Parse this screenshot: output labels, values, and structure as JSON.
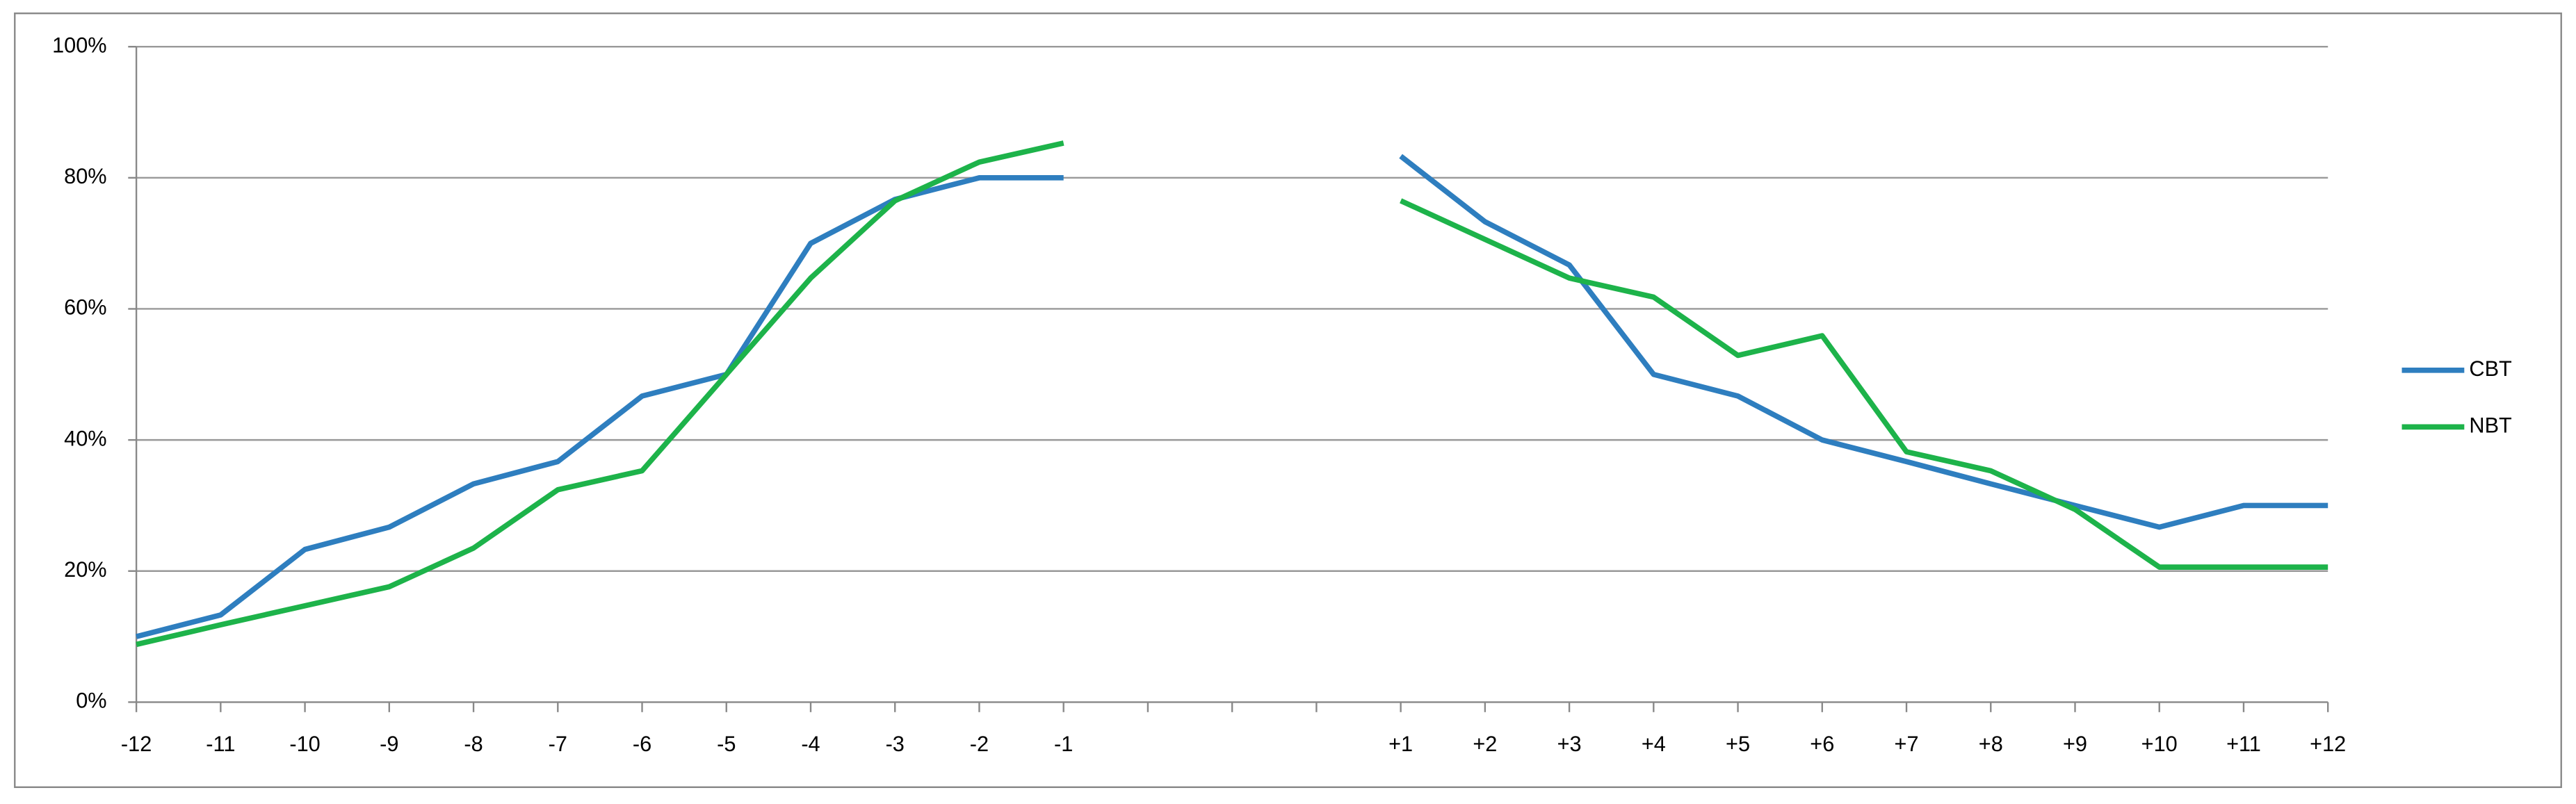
{
  "chart_data": {
    "type": "line",
    "categories": [
      "-12",
      "-11",
      "-10",
      "-9",
      "-8",
      "-7",
      "-6",
      "-5",
      "-4",
      "-3",
      "-2",
      "-1",
      null,
      null,
      null,
      "+1",
      "+2",
      "+3",
      "+4",
      "+5",
      "+6",
      "+7",
      "+8",
      "+9",
      "+10",
      "+11",
      "+12"
    ],
    "series": [
      {
        "name": "CBT",
        "color": "#2e7ebf",
        "values": [
          10,
          13.3,
          23.3,
          26.7,
          33.3,
          36.7,
          46.7,
          50,
          70,
          76.7,
          80,
          80,
          null,
          null,
          null,
          83.3,
          73.3,
          66.7,
          50,
          46.7,
          40,
          36.7,
          33.3,
          30,
          26.7,
          30,
          30
        ]
      },
      {
        "name": "NBT",
        "color": "#1db34a",
        "values": [
          8.8,
          11.8,
          14.7,
          17.6,
          23.5,
          32.4,
          35.3,
          50,
          64.7,
          76.5,
          82.4,
          85.3,
          null,
          null,
          null,
          76.5,
          70.6,
          64.7,
          61.8,
          52.9,
          55.9,
          38.2,
          35.3,
          29.4,
          20.6,
          20.6,
          20.6
        ]
      }
    ],
    "ylim": [
      0,
      100
    ],
    "yticks": [
      {
        "value": 0,
        "label": "0%"
      },
      {
        "value": 20,
        "label": "20%"
      },
      {
        "value": 40,
        "label": "40%"
      },
      {
        "value": 60,
        "label": "60%"
      },
      {
        "value": 80,
        "label": "80%"
      },
      {
        "value": 100,
        "label": "100%"
      }
    ],
    "grid": true,
    "legend": "right"
  }
}
